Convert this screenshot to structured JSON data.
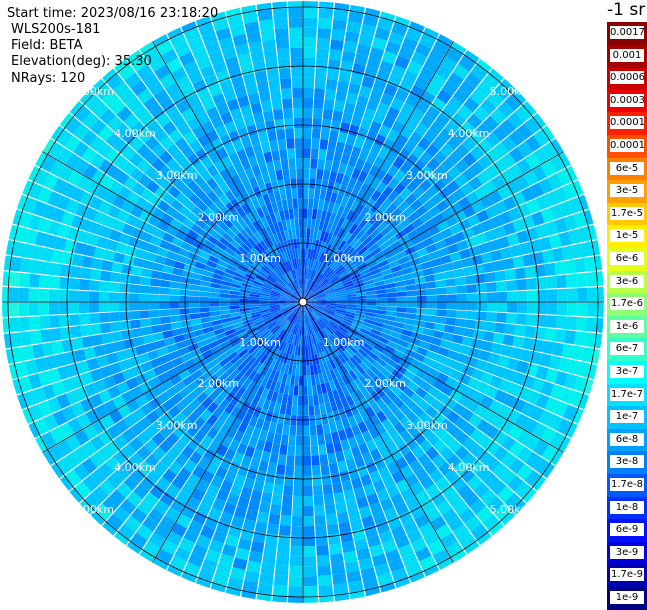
{
  "header": {
    "start_time": "Start time: 2023/08/16 23:18:20",
    "instrument": "WLS200s-181",
    "field": "Field: BETA",
    "elevation": "Elevation(deg): 35.30",
    "nrays": "NRays: 120"
  },
  "colorbar": {
    "unit": "-1 sr",
    "labels": [
      "0.0017",
      "0.001",
      "0.0006",
      "0.0003",
      "0.00017",
      "0.0001",
      "6e-5",
      "3e-5",
      "1.7e-5",
      "1e-5",
      "6e-6",
      "3e-6",
      "1.7e-6",
      "1e-6",
      "6e-7",
      "3e-7",
      "1.7e-7",
      "1e-7",
      "6e-8",
      "3e-8",
      "1.7e-8",
      "1e-8",
      "6e-9",
      "3e-9",
      "1.7e-9",
      "1e-9"
    ],
    "colors": [
      "#8b0000",
      "#a50000",
      "#c80000",
      "#ec0000",
      "#ff2000",
      "#ff5000",
      "#ff7f00",
      "#ffa000",
      "#ffc800",
      "#ffee00",
      "#e6ff1a",
      "#b8ff47",
      "#8cff73",
      "#5fffa0",
      "#33ffcc",
      "#00ffff",
      "#00e0ff",
      "#00c0ff",
      "#00a0ff",
      "#0080ff",
      "#0058ff",
      "#0030ff",
      "#0010ff",
      "#0000e0",
      "#0000b0",
      "#000080"
    ]
  },
  "chart_data": {
    "type": "heatmap",
    "projection": "polar PPI",
    "field": "BETA",
    "n_rays": 120,
    "range_rings_km": [
      1,
      2,
      3,
      4,
      5
    ],
    "range_ring_labels": [
      "1.00km",
      "2.00km",
      "3.00km",
      "4.00km",
      "5.00km"
    ],
    "max_range_km": 5.1,
    "spoke_angles_deg": [
      0,
      30,
      60,
      90,
      120,
      150,
      180,
      210,
      240,
      270,
      300,
      330
    ],
    "value_scale": "log",
    "value_range": [
      1e-09,
      0.0017
    ],
    "typical_value_bands": [
      {
        "range_km": [
          0,
          2
        ],
        "typical_value": "1e-8 to 3e-8"
      },
      {
        "range_km": [
          2,
          4
        ],
        "typical_value": "3e-8 to 6e-8"
      },
      {
        "range_km": [
          4,
          5.1
        ],
        "typical_value": "6e-8 to 1.7e-7"
      }
    ],
    "grid": true
  }
}
